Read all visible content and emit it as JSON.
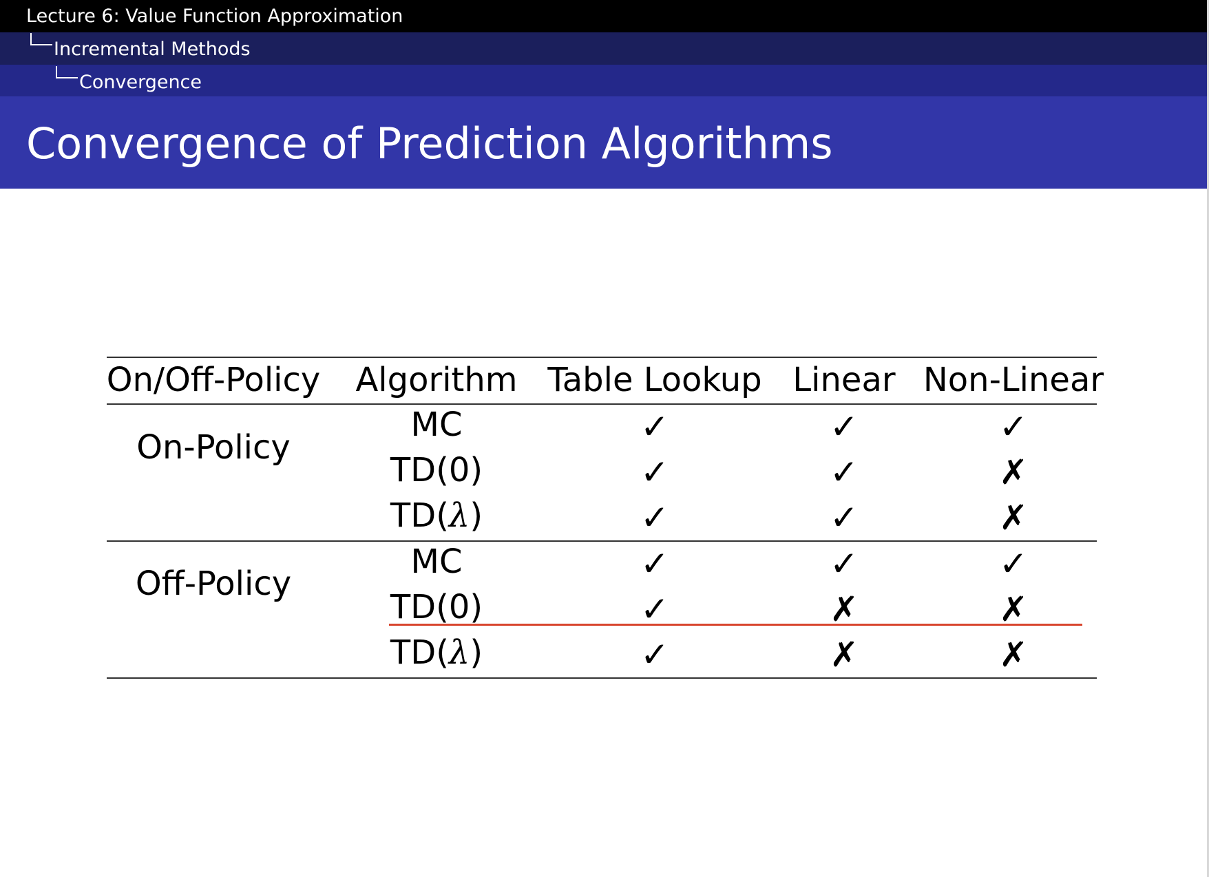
{
  "breadcrumb": {
    "lecture": "Lecture 6: Value Function Approximation",
    "section": "Incremental Methods",
    "subsection": "Convergence"
  },
  "slide": {
    "title": "Convergence of Prediction Algorithms"
  },
  "table": {
    "headers": [
      "On/Off-Policy",
      "Algorithm",
      "Table Lookup",
      "Linear",
      "Non-Linear"
    ],
    "groups": [
      {
        "label": "On-Policy",
        "rows": [
          {
            "algorithm": "MC",
            "table_lookup": "✓",
            "linear": "✓",
            "non_linear": "✓"
          },
          {
            "algorithm": "TD(0)",
            "table_lookup": "✓",
            "linear": "✓",
            "non_linear": "✗"
          },
          {
            "algorithm": "TD(λ)",
            "table_lookup": "✓",
            "linear": "✓",
            "non_linear": "✗"
          }
        ]
      },
      {
        "label": "Off-Policy",
        "rows": [
          {
            "algorithm": "MC",
            "table_lookup": "✓",
            "linear": "✓",
            "non_linear": "✓"
          },
          {
            "algorithm": "TD(0)",
            "table_lookup": "✓",
            "linear": "✗",
            "non_linear": "✗"
          },
          {
            "algorithm": "TD(λ)",
            "table_lookup": "✓",
            "linear": "✗",
            "non_linear": "✗"
          }
        ]
      }
    ]
  },
  "annotation": {
    "underline_color": "#d8452e"
  },
  "colors": {
    "breadcrumb_1": "#000000",
    "breadcrumb_2": "#1b1f5c",
    "breadcrumb_3": "#24288a",
    "title_bar": "#3236a8"
  }
}
